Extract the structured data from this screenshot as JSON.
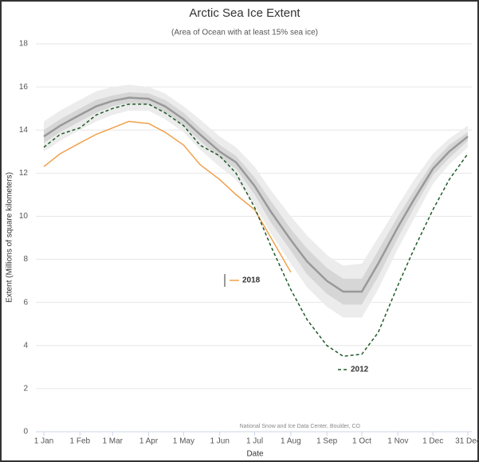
{
  "chart_data": {
    "type": "line",
    "title": "Arctic Sea Ice Extent",
    "subtitle": "(Area of Ocean with at least 15% sea ice)",
    "x_label": "Date",
    "y_label": "Extent (Millions of square kilometers)",
    "source": "National Snow and Ice Data Center, Boulder, CO",
    "x": [
      1,
      15,
      32,
      46,
      60,
      74,
      91,
      105,
      121,
      135,
      152,
      166,
      182,
      196,
      213,
      227,
      244,
      258,
      274,
      288,
      305,
      319,
      335,
      349,
      365
    ],
    "xlim": [
      1,
      365
    ],
    "xticks": [
      {
        "value": 1,
        "label": "1 Jan"
      },
      {
        "value": 32,
        "label": "1 Feb"
      },
      {
        "value": 60,
        "label": "1 Mar"
      },
      {
        "value": 91,
        "label": "1 Apr"
      },
      {
        "value": 121,
        "label": "1 May"
      },
      {
        "value": 152,
        "label": "1 Jun"
      },
      {
        "value": 182,
        "label": "1 Jul"
      },
      {
        "value": 213,
        "label": "1 Aug"
      },
      {
        "value": 244,
        "label": "1 Sep"
      },
      {
        "value": 274,
        "label": "1 Oct"
      },
      {
        "value": 305,
        "label": "1 Nov"
      },
      {
        "value": 335,
        "label": "1 Dec"
      },
      {
        "value": 365,
        "label": "31 Dec"
      }
    ],
    "ylim": [
      0,
      18
    ],
    "yticks": [
      0,
      2,
      4,
      6,
      8,
      10,
      12,
      14,
      16,
      18
    ],
    "grid": true,
    "bands": [
      {
        "color": "#ececec",
        "upper": [
          14.4,
          14.9,
          15.4,
          15.8,
          16.0,
          16.1,
          16.0,
          15.7,
          15.1,
          14.5,
          13.7,
          13.2,
          12.3,
          11.2,
          10.0,
          9.1,
          8.2,
          7.7,
          7.8,
          9.0,
          10.5,
          11.7,
          12.9,
          13.6,
          14.2
        ],
        "lower": [
          13.0,
          13.5,
          14.0,
          14.4,
          14.7,
          14.9,
          14.9,
          14.5,
          13.9,
          13.1,
          12.3,
          11.7,
          10.5,
          9.2,
          7.8,
          6.7,
          5.8,
          5.3,
          5.3,
          6.6,
          8.5,
          9.9,
          11.5,
          12.4,
          13.2
        ]
      },
      {
        "color": "#d6d6d6",
        "upper": [
          14.0,
          14.5,
          15.0,
          15.4,
          15.6,
          15.75,
          15.7,
          15.4,
          14.8,
          14.1,
          13.3,
          12.8,
          11.8,
          10.7,
          9.4,
          8.5,
          7.6,
          7.1,
          7.1,
          8.4,
          10.0,
          11.2,
          12.5,
          13.3,
          13.9
        ],
        "lower": [
          13.4,
          13.9,
          14.4,
          14.8,
          15.1,
          15.25,
          15.2,
          14.8,
          14.2,
          13.5,
          12.7,
          12.2,
          11.0,
          9.7,
          8.4,
          7.3,
          6.4,
          5.9,
          5.9,
          7.2,
          9.0,
          10.4,
          11.9,
          12.7,
          13.5
        ]
      }
    ],
    "series": [
      {
        "color": "#999999",
        "values": [
          13.7,
          14.2,
          14.7,
          15.1,
          15.35,
          15.5,
          15.45,
          15.1,
          14.5,
          13.8,
          13.0,
          12.5,
          11.4,
          10.2,
          8.9,
          7.9,
          7.0,
          6.5,
          6.5,
          7.8,
          9.5,
          10.8,
          12.2,
          13.0,
          13.7
        ]
      },
      {
        "name": "2018",
        "color": "#f0a04b",
        "values": [
          12.3,
          12.9,
          13.4,
          13.8,
          14.1,
          14.4,
          14.3,
          13.9,
          13.3,
          12.4,
          11.7,
          11.0,
          10.3,
          9.0,
          7.4,
          null,
          null,
          null,
          null,
          null,
          null,
          null,
          null,
          null,
          null
        ]
      },
      {
        "name": "2012",
        "color": "#1e5a28",
        "dashed": true,
        "values": [
          13.2,
          13.8,
          14.1,
          14.7,
          15.0,
          15.2,
          15.2,
          14.8,
          14.2,
          13.3,
          12.8,
          12.0,
          10.4,
          8.6,
          6.6,
          5.2,
          4.0,
          3.5,
          3.6,
          4.6,
          6.8,
          8.5,
          10.3,
          11.7,
          12.9
        ]
      }
    ]
  }
}
